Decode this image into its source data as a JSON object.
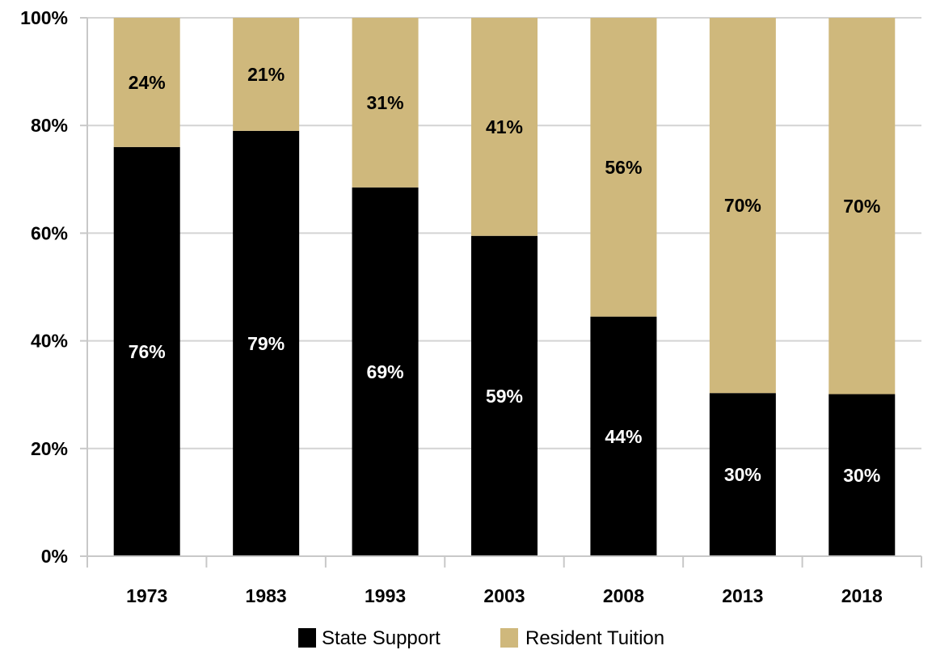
{
  "chart_data": {
    "type": "bar",
    "stacked": true,
    "categories": [
      "1973",
      "1983",
      "1993",
      "2003",
      "2008",
      "2013",
      "2018"
    ],
    "series": [
      {
        "name": "State Support",
        "values": [
          76,
          79,
          68.5,
          59.5,
          44.5,
          30.3,
          30.1
        ],
        "labels": [
          "76%",
          "79%",
          "69%",
          "59%",
          "44%",
          "30%",
          "30%"
        ],
        "color": "#000000",
        "label_color": "#ffffff"
      },
      {
        "name": "Resident Tuition",
        "values": [
          24,
          21,
          31.5,
          40.5,
          55.5,
          69.7,
          69.9
        ],
        "labels": [
          "24%",
          "21%",
          "31%",
          "41%",
          "56%",
          "70%",
          "70%"
        ],
        "color": "#cfb87c",
        "label_color": "#000000"
      }
    ],
    "ylim": [
      0,
      100
    ],
    "yticks": [
      "0%",
      "20%",
      "40%",
      "60%",
      "80%",
      "100%"
    ],
    "ytick_values": [
      0,
      20,
      40,
      60,
      80,
      100
    ],
    "grid": true,
    "grid_color": "#d4d4d4",
    "legend_position": "bottom-center"
  }
}
